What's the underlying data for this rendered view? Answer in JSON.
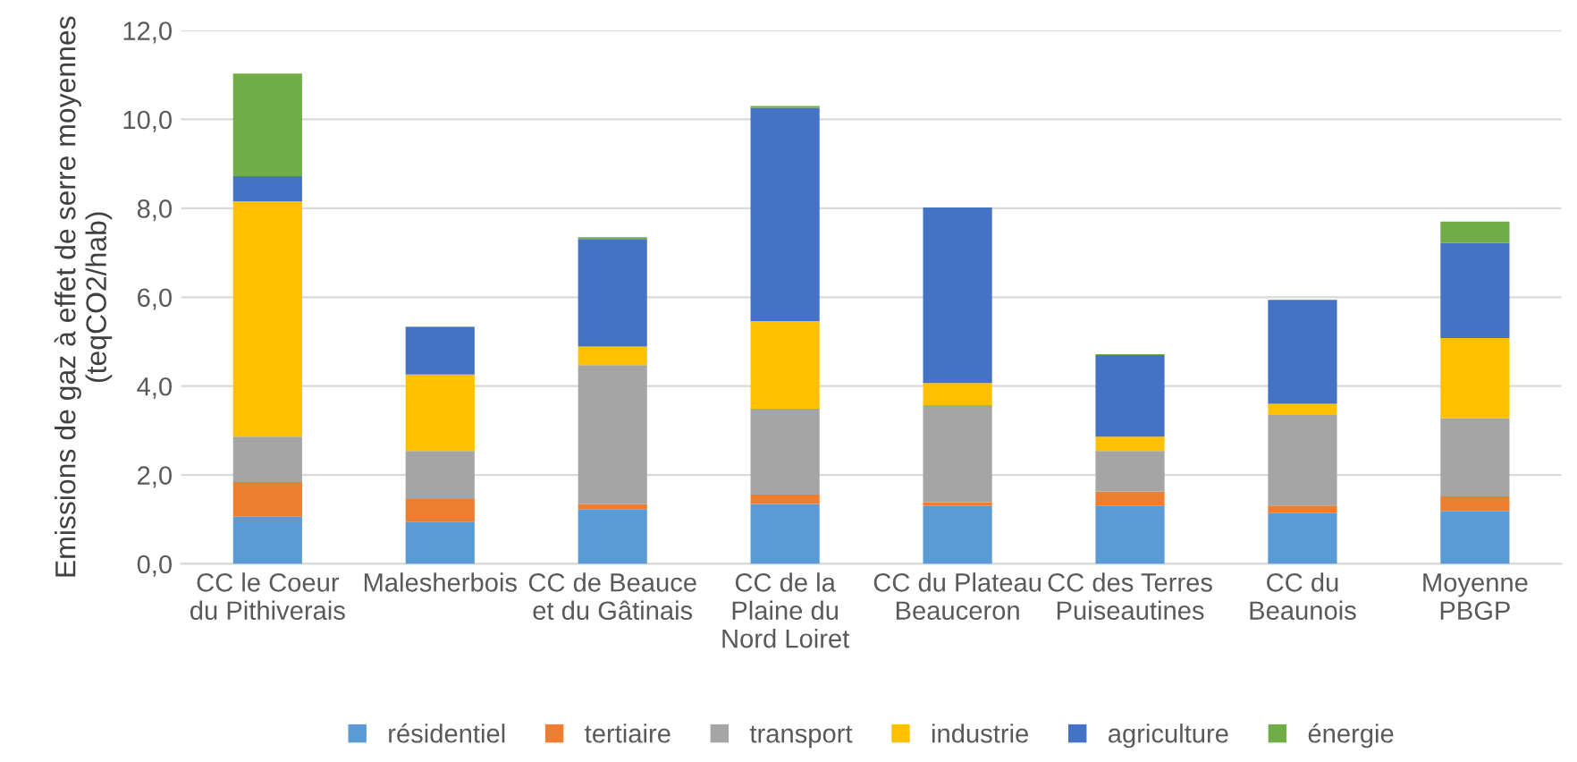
{
  "chart_data": {
    "type": "bar",
    "stacked": true,
    "ylabel": "Emissions de gaz à effet de serre moyennes\n(teqCO2/hab)",
    "categories": [
      "CC le Coeur\ndu Pithiverais",
      "Malesherbois",
      "CC de Beauce\net du Gâtinais",
      "CC de la\nPlaine du\nNord Loiret",
      "CC du Plateau\nBeauceron",
      "CC des Terres\nPuiseautines",
      "CC du\nBeaunois",
      "Moyenne\nPBGP"
    ],
    "series": [
      {
        "name": "résidentiel",
        "color": "#5b9bd5",
        "values": [
          1.06,
          0.95,
          1.23,
          1.35,
          1.3,
          1.3,
          1.14,
          1.18
        ]
      },
      {
        "name": "tertiaire",
        "color": "#ed7d31",
        "values": [
          0.78,
          0.51,
          0.12,
          0.21,
          0.09,
          0.33,
          0.17,
          0.34
        ]
      },
      {
        "name": "transport",
        "color": "#a5a5a5",
        "values": [
          1.02,
          1.08,
          3.12,
          1.93,
          2.18,
          0.91,
          2.04,
          1.76
        ]
      },
      {
        "name": "industrie",
        "color": "#ffc000",
        "values": [
          5.3,
          1.72,
          0.42,
          1.97,
          0.5,
          0.32,
          0.25,
          1.8
        ]
      },
      {
        "name": "agriculture",
        "color": "#4472c4",
        "values": [
          0.56,
          1.07,
          2.42,
          4.8,
          3.95,
          1.84,
          2.34,
          2.14
        ]
      },
      {
        "name": "énergie",
        "color": "#70ad47",
        "values": [
          2.31,
          0.01,
          0.04,
          0.04,
          0,
          0.02,
          0,
          0.48
        ]
      }
    ],
    "ylim": [
      0,
      12
    ],
    "yticks": [
      {
        "value": 0,
        "label": "0,0"
      },
      {
        "value": 2,
        "label": "2,0"
      },
      {
        "value": 4,
        "label": "4,0"
      },
      {
        "value": 6,
        "label": "6,0"
      },
      {
        "value": 8,
        "label": "8,0"
      },
      {
        "value": 10,
        "label": "10,0"
      },
      {
        "value": 12,
        "label": "12,0"
      }
    ],
    "grid": "y",
    "legend": "bottom"
  }
}
